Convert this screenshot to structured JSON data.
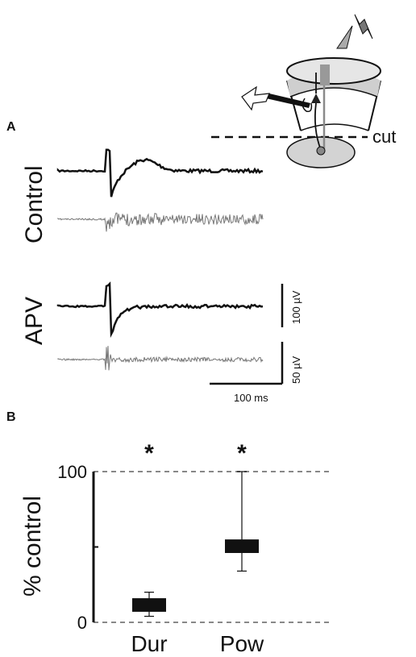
{
  "panels": {
    "a_label": "A",
    "b_label": "B"
  },
  "schematic": {
    "cut_label": "cut"
  },
  "traces": {
    "control_label": "Control",
    "apv_label": "APV",
    "scale_upper": "100 µV",
    "scale_lower": "50 µV",
    "scale_time": "100 ms"
  },
  "chart_data": {
    "type": "box",
    "categories": [
      "Dur",
      "Pow"
    ],
    "ylabel": "% control",
    "ylim": [
      0,
      100
    ],
    "yticks": [
      0,
      100
    ],
    "reference_lines": [
      0,
      100
    ],
    "boxes": [
      {
        "category": "Dur",
        "whisker_low": 4,
        "q1": 7,
        "q3": 16,
        "whisker_high": 20,
        "significance": "*"
      },
      {
        "category": "Pow",
        "whisker_low": 34,
        "q1": 46,
        "q3": 55,
        "whisker_high": 100,
        "significance": "*"
      }
    ],
    "colors": {
      "box": "#111111",
      "reference_line": "#888888"
    }
  }
}
